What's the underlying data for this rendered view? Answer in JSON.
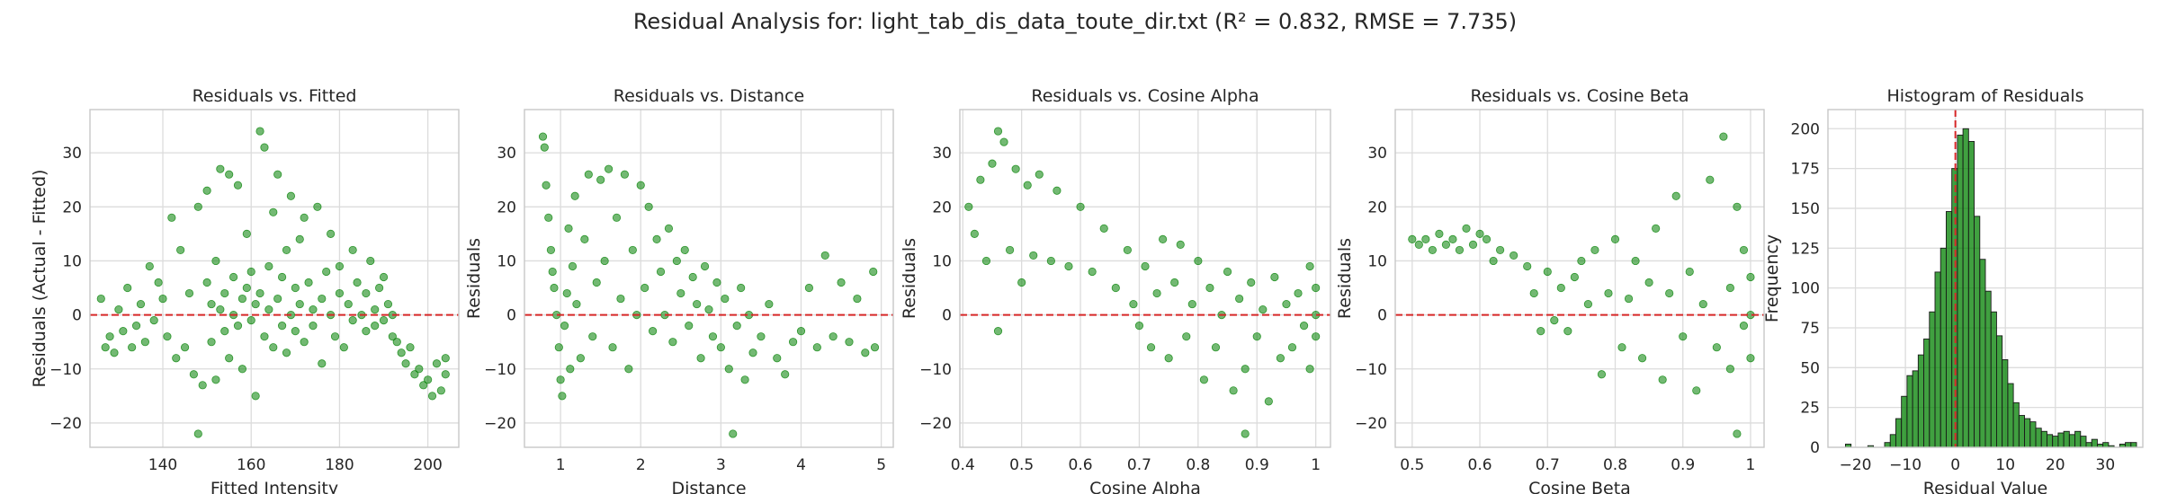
{
  "suptitle": "Residual Analysis for: light_tab_dis_data_toute_dir.txt (R² = 0.832, RMSE = 7.735)",
  "colors": {
    "points": "#008000",
    "zero_line": "#d62728",
    "grid": "#dcdcdc",
    "spine": "#c8c8c8",
    "text": "#262626",
    "bar_edge": "#1a1a1a"
  },
  "chart_data": [
    {
      "type": "scatter",
      "title": "Residuals vs. Fitted",
      "xlabel": "Fitted Intensity",
      "ylabel": "Residuals (Actual - Fitted)",
      "xlim": [
        123.5,
        207
      ],
      "ylim": [
        -24.5,
        38
      ],
      "xticks": [
        140,
        160,
        180,
        200
      ],
      "yticks": [
        -20,
        -10,
        0,
        10,
        20,
        30
      ],
      "reference_line": {
        "y": 0,
        "style": "dashed"
      },
      "grid": true,
      "points": [
        [
          126,
          3
        ],
        [
          127,
          -6
        ],
        [
          128,
          -4
        ],
        [
          129,
          -7
        ],
        [
          130,
          1
        ],
        [
          131,
          -3
        ],
        [
          132,
          5
        ],
        [
          133,
          -6
        ],
        [
          134,
          -2
        ],
        [
          135,
          2
        ],
        [
          136,
          -5
        ],
        [
          137,
          9
        ],
        [
          138,
          -1
        ],
        [
          139,
          6
        ],
        [
          140,
          3
        ],
        [
          141,
          -4
        ],
        [
          142,
          18
        ],
        [
          143,
          -8
        ],
        [
          144,
          12
        ],
        [
          145,
          -6
        ],
        [
          146,
          4
        ],
        [
          147,
          -11
        ],
        [
          148,
          -22
        ],
        [
          148,
          20
        ],
        [
          149,
          -13
        ],
        [
          150,
          23
        ],
        [
          150,
          6
        ],
        [
          151,
          2
        ],
        [
          151,
          -5
        ],
        [
          152,
          -12
        ],
        [
          152,
          10
        ],
        [
          153,
          27
        ],
        [
          153,
          1
        ],
        [
          154,
          -3
        ],
        [
          154,
          4
        ],
        [
          155,
          26
        ],
        [
          155,
          -8
        ],
        [
          156,
          7
        ],
        [
          156,
          0
        ],
        [
          157,
          -2
        ],
        [
          157,
          24
        ],
        [
          158,
          3
        ],
        [
          158,
          -10
        ],
        [
          159,
          5
        ],
        [
          159,
          15
        ],
        [
          160,
          -1
        ],
        [
          160,
          8
        ],
        [
          161,
          2
        ],
        [
          161,
          -15
        ],
        [
          162,
          34
        ],
        [
          162,
          4
        ],
        [
          163,
          31
        ],
        [
          163,
          -4
        ],
        [
          164,
          9
        ],
        [
          164,
          1
        ],
        [
          165,
          -6
        ],
        [
          165,
          19
        ],
        [
          166,
          3
        ],
        [
          166,
          26
        ],
        [
          167,
          -2
        ],
        [
          167,
          7
        ],
        [
          168,
          12
        ],
        [
          168,
          -7
        ],
        [
          169,
          0
        ],
        [
          169,
          22
        ],
        [
          170,
          5
        ],
        [
          170,
          -3
        ],
        [
          171,
          14
        ],
        [
          171,
          2
        ],
        [
          172,
          -5
        ],
        [
          172,
          18
        ],
        [
          173,
          6
        ],
        [
          174,
          1
        ],
        [
          174,
          -2
        ],
        [
          175,
          20
        ],
        [
          176,
          3
        ],
        [
          176,
          -9
        ],
        [
          177,
          8
        ],
        [
          178,
          0
        ],
        [
          178,
          15
        ],
        [
          179,
          -4
        ],
        [
          180,
          4
        ],
        [
          180,
          9
        ],
        [
          181,
          -6
        ],
        [
          182,
          2
        ],
        [
          183,
          12
        ],
        [
          183,
          -1
        ],
        [
          184,
          6
        ],
        [
          185,
          0
        ],
        [
          186,
          -3
        ],
        [
          186,
          4
        ],
        [
          187,
          10
        ],
        [
          188,
          1
        ],
        [
          188,
          -2
        ],
        [
          189,
          5
        ],
        [
          190,
          7
        ],
        [
          190,
          -1
        ],
        [
          191,
          2
        ],
        [
          192,
          -4
        ],
        [
          192,
          0
        ],
        [
          193,
          -5
        ],
        [
          194,
          -7
        ],
        [
          195,
          -9
        ],
        [
          196,
          -6
        ],
        [
          197,
          -11
        ],
        [
          198,
          -10
        ],
        [
          199,
          -13
        ],
        [
          200,
          -12
        ],
        [
          201,
          -15
        ],
        [
          202,
          -9
        ],
        [
          203,
          -14
        ],
        [
          204,
          -11
        ],
        [
          204,
          -8
        ]
      ]
    },
    {
      "type": "scatter",
      "title": "Residuals vs. Distance",
      "xlabel": "Distance",
      "ylabel": "Residuals",
      "xlim": [
        0.55,
        5.15
      ],
      "ylim": [
        -24.5,
        38
      ],
      "xticks": [
        1,
        2,
        3,
        4,
        5
      ],
      "yticks": [
        -20,
        -10,
        0,
        10,
        20,
        30
      ],
      "reference_line": {
        "y": 0,
        "style": "dashed"
      },
      "grid": true,
      "points": [
        [
          0.78,
          33
        ],
        [
          0.8,
          31
        ],
        [
          0.82,
          24
        ],
        [
          0.85,
          18
        ],
        [
          0.88,
          12
        ],
        [
          0.9,
          8
        ],
        [
          0.92,
          5
        ],
        [
          0.95,
          0
        ],
        [
          0.98,
          -6
        ],
        [
          1.0,
          -12
        ],
        [
          1.02,
          -15
        ],
        [
          1.05,
          -2
        ],
        [
          1.08,
          4
        ],
        [
          1.1,
          16
        ],
        [
          1.12,
          -10
        ],
        [
          1.15,
          9
        ],
        [
          1.18,
          22
        ],
        [
          1.2,
          2
        ],
        [
          1.25,
          -8
        ],
        [
          1.3,
          14
        ],
        [
          1.35,
          26
        ],
        [
          1.4,
          -4
        ],
        [
          1.45,
          6
        ],
        [
          1.5,
          25
        ],
        [
          1.55,
          10
        ],
        [
          1.6,
          27
        ],
        [
          1.65,
          -6
        ],
        [
          1.7,
          18
        ],
        [
          1.75,
          3
        ],
        [
          1.8,
          26
        ],
        [
          1.85,
          -10
        ],
        [
          1.9,
          12
        ],
        [
          1.95,
          0
        ],
        [
          2.0,
          24
        ],
        [
          2.05,
          5
        ],
        [
          2.1,
          20
        ],
        [
          2.15,
          -3
        ],
        [
          2.2,
          14
        ],
        [
          2.25,
          8
        ],
        [
          2.3,
          0
        ],
        [
          2.35,
          16
        ],
        [
          2.4,
          -5
        ],
        [
          2.45,
          10
        ],
        [
          2.5,
          4
        ],
        [
          2.55,
          12
        ],
        [
          2.6,
          -2
        ],
        [
          2.65,
          7
        ],
        [
          2.7,
          2
        ],
        [
          2.75,
          -8
        ],
        [
          2.8,
          9
        ],
        [
          2.85,
          1
        ],
        [
          2.9,
          -4
        ],
        [
          2.95,
          6
        ],
        [
          3.0,
          -6
        ],
        [
          3.05,
          3
        ],
        [
          3.1,
          -10
        ],
        [
          3.15,
          -22
        ],
        [
          3.2,
          -2
        ],
        [
          3.25,
          5
        ],
        [
          3.3,
          -12
        ],
        [
          3.35,
          0
        ],
        [
          3.4,
          -7
        ],
        [
          3.5,
          -4
        ],
        [
          3.6,
          2
        ],
        [
          3.7,
          -8
        ],
        [
          3.8,
          -11
        ],
        [
          3.9,
          -5
        ],
        [
          4.0,
          -3
        ],
        [
          4.1,
          5
        ],
        [
          4.2,
          -6
        ],
        [
          4.3,
          11
        ],
        [
          4.4,
          -4
        ],
        [
          4.5,
          6
        ],
        [
          4.6,
          -5
        ],
        [
          4.7,
          3
        ],
        [
          4.8,
          -7
        ],
        [
          4.9,
          8
        ],
        [
          4.92,
          -6
        ]
      ]
    },
    {
      "type": "scatter",
      "title": "Residuals vs. Cosine Alpha",
      "xlabel": "Cosine Alpha",
      "ylabel": "Residuals",
      "xlim": [
        0.395,
        1.025
      ],
      "ylim": [
        -24.5,
        38
      ],
      "xticks": [
        0.4,
        0.5,
        0.6,
        0.7,
        0.8,
        0.9,
        1.0
      ],
      "yticks": [
        -20,
        -10,
        0,
        10,
        20,
        30
      ],
      "reference_line": {
        "y": 0,
        "style": "dashed"
      },
      "grid": true,
      "points": [
        [
          0.41,
          20
        ],
        [
          0.42,
          15
        ],
        [
          0.43,
          25
        ],
        [
          0.44,
          10
        ],
        [
          0.45,
          28
        ],
        [
          0.46,
          34
        ],
        [
          0.46,
          -3
        ],
        [
          0.47,
          32
        ],
        [
          0.48,
          12
        ],
        [
          0.49,
          27
        ],
        [
          0.5,
          6
        ],
        [
          0.51,
          24
        ],
        [
          0.52,
          11
        ],
        [
          0.53,
          26
        ],
        [
          0.55,
          10
        ],
        [
          0.56,
          23
        ],
        [
          0.58,
          9
        ],
        [
          0.6,
          20
        ],
        [
          0.62,
          8
        ],
        [
          0.64,
          16
        ],
        [
          0.66,
          5
        ],
        [
          0.68,
          12
        ],
        [
          0.69,
          2
        ],
        [
          0.7,
          -2
        ],
        [
          0.71,
          9
        ],
        [
          0.72,
          -6
        ],
        [
          0.73,
          4
        ],
        [
          0.74,
          14
        ],
        [
          0.75,
          -8
        ],
        [
          0.76,
          6
        ],
        [
          0.77,
          13
        ],
        [
          0.78,
          -4
        ],
        [
          0.79,
          2
        ],
        [
          0.8,
          10
        ],
        [
          0.81,
          -12
        ],
        [
          0.82,
          5
        ],
        [
          0.83,
          -6
        ],
        [
          0.84,
          0
        ],
        [
          0.85,
          8
        ],
        [
          0.86,
          -14
        ],
        [
          0.87,
          3
        ],
        [
          0.88,
          -22
        ],
        [
          0.88,
          -10
        ],
        [
          0.89,
          6
        ],
        [
          0.9,
          -4
        ],
        [
          0.91,
          1
        ],
        [
          0.92,
          -16
        ],
        [
          0.93,
          7
        ],
        [
          0.94,
          -8
        ],
        [
          0.95,
          2
        ],
        [
          0.96,
          -6
        ],
        [
          0.97,
          4
        ],
        [
          0.98,
          -2
        ],
        [
          0.99,
          9
        ],
        [
          0.99,
          -10
        ],
        [
          1.0,
          0
        ],
        [
          1.0,
          5
        ],
        [
          1.0,
          -4
        ]
      ]
    },
    {
      "type": "scatter",
      "title": "Residuals vs. Cosine Beta",
      "xlabel": "Cosine Beta",
      "ylabel": "Residuals",
      "xlim": [
        0.475,
        1.02
      ],
      "ylim": [
        -24.5,
        38
      ],
      "xticks": [
        0.5,
        0.6,
        0.7,
        0.8,
        0.9,
        1.0
      ],
      "yticks": [
        -20,
        -10,
        0,
        10,
        20,
        30
      ],
      "reference_line": {
        "y": 0,
        "style": "dashed"
      },
      "grid": true,
      "points": [
        [
          0.5,
          14
        ],
        [
          0.51,
          13
        ],
        [
          0.52,
          14
        ],
        [
          0.53,
          12
        ],
        [
          0.54,
          15
        ],
        [
          0.55,
          13
        ],
        [
          0.56,
          14
        ],
        [
          0.57,
          12
        ],
        [
          0.58,
          16
        ],
        [
          0.59,
          13
        ],
        [
          0.6,
          15
        ],
        [
          0.61,
          14
        ],
        [
          0.62,
          10
        ],
        [
          0.63,
          12
        ],
        [
          0.65,
          11
        ],
        [
          0.67,
          9
        ],
        [
          0.68,
          4
        ],
        [
          0.69,
          -3
        ],
        [
          0.7,
          8
        ],
        [
          0.71,
          -1
        ],
        [
          0.72,
          5
        ],
        [
          0.73,
          -3
        ],
        [
          0.74,
          7
        ],
        [
          0.75,
          10
        ],
        [
          0.76,
          2
        ],
        [
          0.77,
          12
        ],
        [
          0.78,
          -11
        ],
        [
          0.79,
          4
        ],
        [
          0.8,
          14
        ],
        [
          0.81,
          -6
        ],
        [
          0.82,
          3
        ],
        [
          0.83,
          10
        ],
        [
          0.84,
          -8
        ],
        [
          0.85,
          6
        ],
        [
          0.86,
          16
        ],
        [
          0.87,
          -12
        ],
        [
          0.88,
          4
        ],
        [
          0.89,
          22
        ],
        [
          0.9,
          -4
        ],
        [
          0.91,
          8
        ],
        [
          0.92,
          -14
        ],
        [
          0.93,
          2
        ],
        [
          0.94,
          25
        ],
        [
          0.95,
          -6
        ],
        [
          0.96,
          33
        ],
        [
          0.97,
          -10
        ],
        [
          0.97,
          5
        ],
        [
          0.98,
          20
        ],
        [
          0.98,
          -22
        ],
        [
          0.99,
          -2
        ],
        [
          0.99,
          12
        ],
        [
          1.0,
          0
        ],
        [
          1.0,
          7
        ],
        [
          1.0,
          -8
        ]
      ]
    },
    {
      "type": "histogram",
      "title": "Histogram of Residuals",
      "xlabel": "Residual Value",
      "ylabel": "Frequency",
      "xlim": [
        -25.5,
        37.5
      ],
      "ylim": [
        0,
        212
      ],
      "xticks": [
        -20,
        -10,
        0,
        10,
        20,
        30
      ],
      "yticks": [
        0,
        25,
        50,
        75,
        100,
        125,
        150,
        175,
        200
      ],
      "reference_line": {
        "x": 0,
        "style": "dashed"
      },
      "grid": true,
      "bin_start": -22,
      "bin_width": 1.12,
      "counts": [
        2,
        0,
        0,
        0,
        1,
        0,
        0,
        3,
        8,
        18,
        32,
        45,
        48,
        58,
        68,
        85,
        110,
        125,
        148,
        175,
        196,
        200,
        192,
        145,
        118,
        98,
        85,
        70,
        55,
        40,
        28,
        20,
        18,
        16,
        12,
        10,
        8,
        7,
        9,
        10,
        8,
        10,
        7,
        3,
        5,
        2,
        3,
        1,
        0,
        2,
        3,
        3
      ]
    }
  ]
}
